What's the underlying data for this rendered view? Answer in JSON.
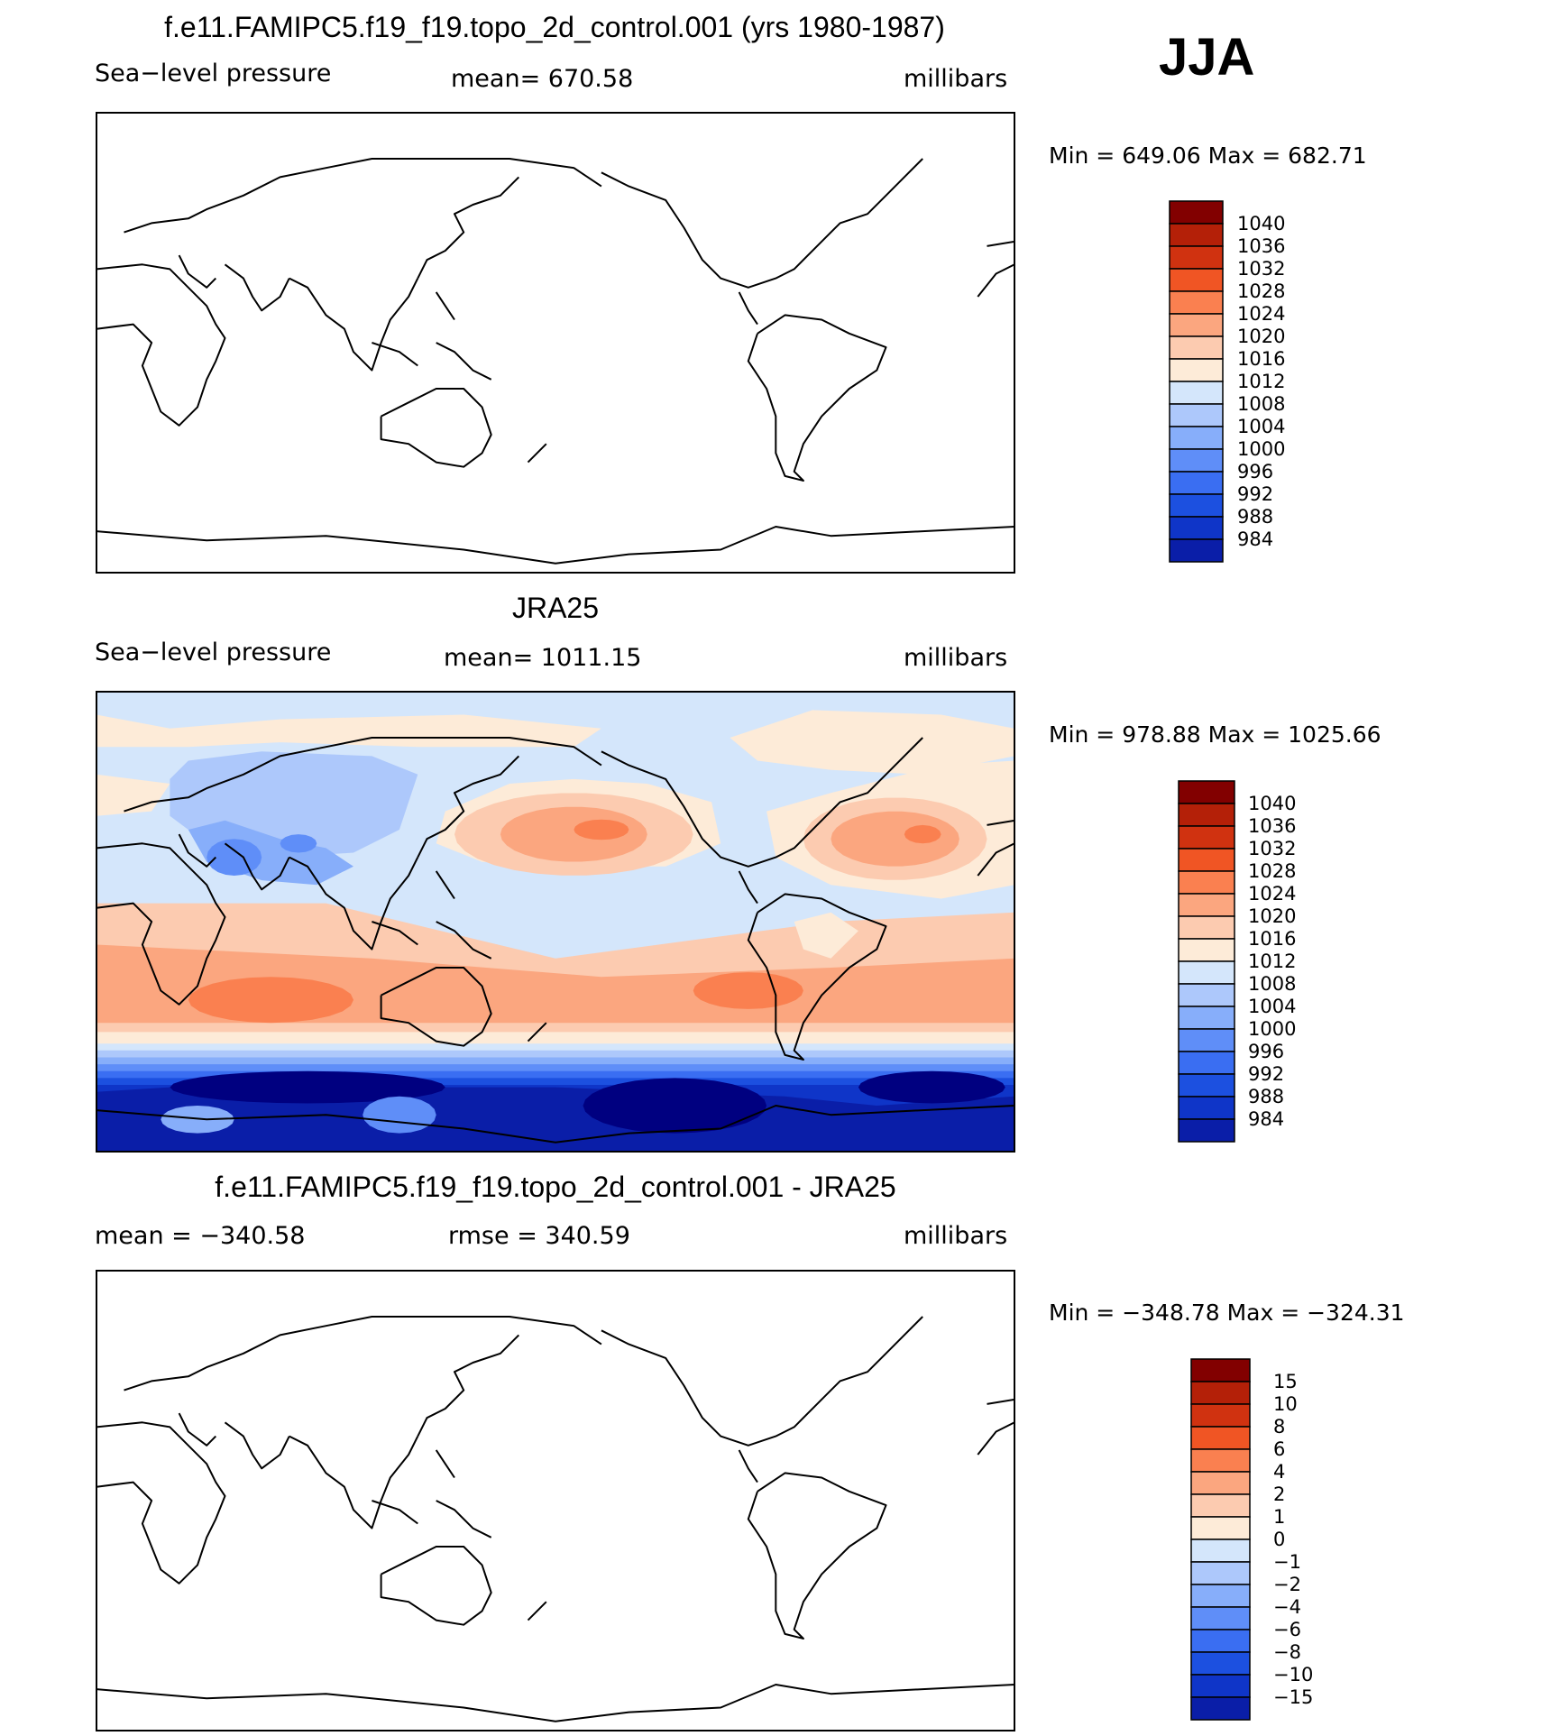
{
  "season": "JJA",
  "colors": [
    "#000080",
    "#0a1ea8",
    "#0f35c8",
    "#1c50e0",
    "#3a6ef2",
    "#5f8ef8",
    "#87aefa",
    "#adc8fb",
    "#d4e6fb",
    "#fdebd8",
    "#fccbb0",
    "#fba67f",
    "#fa8050",
    "#f05524",
    "#d03210",
    "#b42008",
    "#820000"
  ],
  "chart_data": [
    {
      "type": "contour-map",
      "title": "f.e11.FAMIPC5.f19_f19.topo_2d_control.001 (yrs 1980-1987)",
      "variable": "Sea−level pressure",
      "stat": "mean=  670.58",
      "units": "millibars",
      "minmax": "Min  =  649.06  Max  =  682.71",
      "levels": [
        "1040",
        "1036",
        "1032",
        "1028",
        "1024",
        "1020",
        "1016",
        "1012",
        "1008",
        "1004",
        "1000",
        "996",
        "992",
        "988",
        "984"
      ],
      "min": 649.06,
      "max": 682.71,
      "mean": 670.58,
      "field": "blank"
    },
    {
      "type": "contour-map",
      "title": "JRA25",
      "variable": "Sea−level pressure",
      "stat": "mean=  1011.15",
      "units": "millibars",
      "minmax": "Min  =  978.88  Max  =  1025.66",
      "levels": [
        "1040",
        "1036",
        "1032",
        "1028",
        "1024",
        "1020",
        "1016",
        "1012",
        "1008",
        "1004",
        "1000",
        "996",
        "992",
        "988",
        "984"
      ],
      "min": 978.88,
      "max": 1025.66,
      "mean": 1011.15,
      "field": "filled"
    },
    {
      "type": "contour-map",
      "title": "f.e11.FAMIPC5.f19_f19.topo_2d_control.001 - JRA25",
      "variable": "mean  =  −340.58",
      "stat": "rmse  =  340.59",
      "units": "millibars",
      "minmax": "Min  =  −348.78  Max  =  −324.31",
      "levels": [
        "15",
        "10",
        "8",
        "6",
        "4",
        "2",
        "1",
        "0",
        "−1",
        "−2",
        "−4",
        "−6",
        "−8",
        "−10",
        "−15"
      ],
      "min": -348.78,
      "max": -324.31,
      "mean": -340.58,
      "rmse": 340.59,
      "field": "blank"
    }
  ]
}
